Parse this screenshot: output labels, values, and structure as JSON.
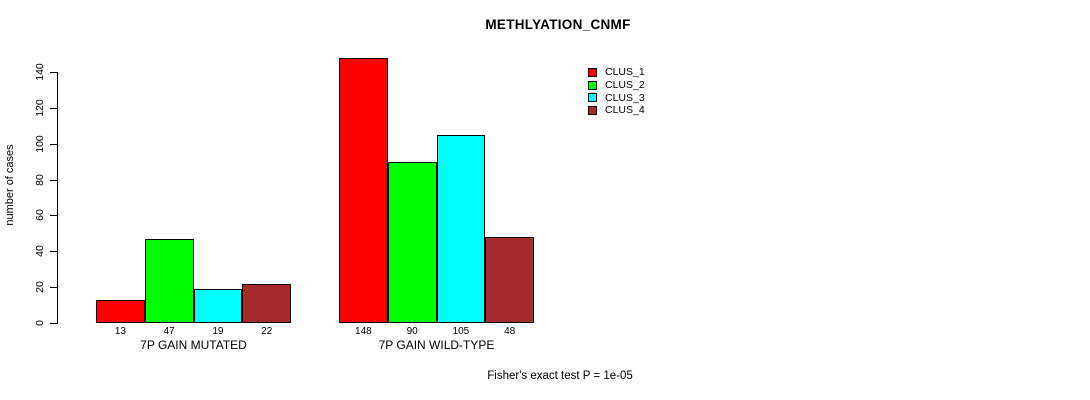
{
  "chart_data": {
    "type": "bar",
    "title": "METHLYATION_CNMF",
    "ylabel": "number of cases",
    "xlabel": "",
    "categories": [
      "7P GAIN MUTATED",
      "7P GAIN WILD-TYPE"
    ],
    "series": [
      {
        "name": "CLUS_1",
        "color": "#FF0000",
        "values": [
          13,
          148
        ]
      },
      {
        "name": "CLUS_2",
        "color": "#00FF00",
        "values": [
          47,
          90
        ]
      },
      {
        "name": "CLUS_3",
        "color": "#00FFFF",
        "values": [
          19,
          105
        ]
      },
      {
        "name": "CLUS_4",
        "color": "#A52A2A",
        "values": [
          22,
          48
        ]
      }
    ],
    "bar_value_labels": [
      [
        13,
        47,
        19,
        22
      ],
      [
        148,
        90,
        105,
        48
      ]
    ],
    "yticks": [
      0,
      20,
      40,
      60,
      80,
      100,
      120,
      140
    ],
    "ylim": [
      0,
      140
    ],
    "grid": false,
    "legend_position": "top-right",
    "annotation": "Fisher's exact test P = 1e-05"
  }
}
